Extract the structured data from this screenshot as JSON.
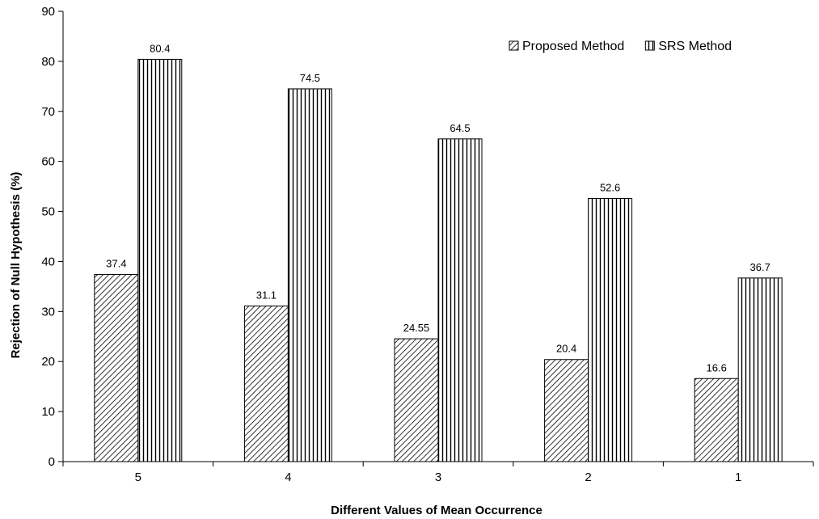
{
  "chart_data": {
    "type": "bar",
    "title": "",
    "xlabel": "Different Values of Mean Occurrence",
    "ylabel": "Rejection of Null Hypothesis (%)",
    "ylim": [
      0,
      90
    ],
    "y_ticks": [
      "0",
      "10",
      "20",
      "30",
      "40",
      "50",
      "60",
      "70",
      "80",
      "90"
    ],
    "grid": false,
    "legend_position": "top-right",
    "categories": [
      "5",
      "4",
      "3",
      "2",
      "1"
    ],
    "series": [
      {
        "name": "Proposed Method",
        "pattern": "diagonal-hatch",
        "values": [
          37.4,
          31.1,
          24.55,
          20.4,
          16.6
        ],
        "labels": [
          "37.4",
          "31.1",
          "24.55",
          "20.4",
          "16.6"
        ]
      },
      {
        "name": "SRS Method",
        "pattern": "vertical-stripes",
        "values": [
          80.4,
          74.5,
          64.5,
          52.6,
          36.7
        ],
        "labels": [
          "80.4",
          "74.5",
          "64.5",
          "52.6",
          "36.7"
        ]
      }
    ]
  }
}
